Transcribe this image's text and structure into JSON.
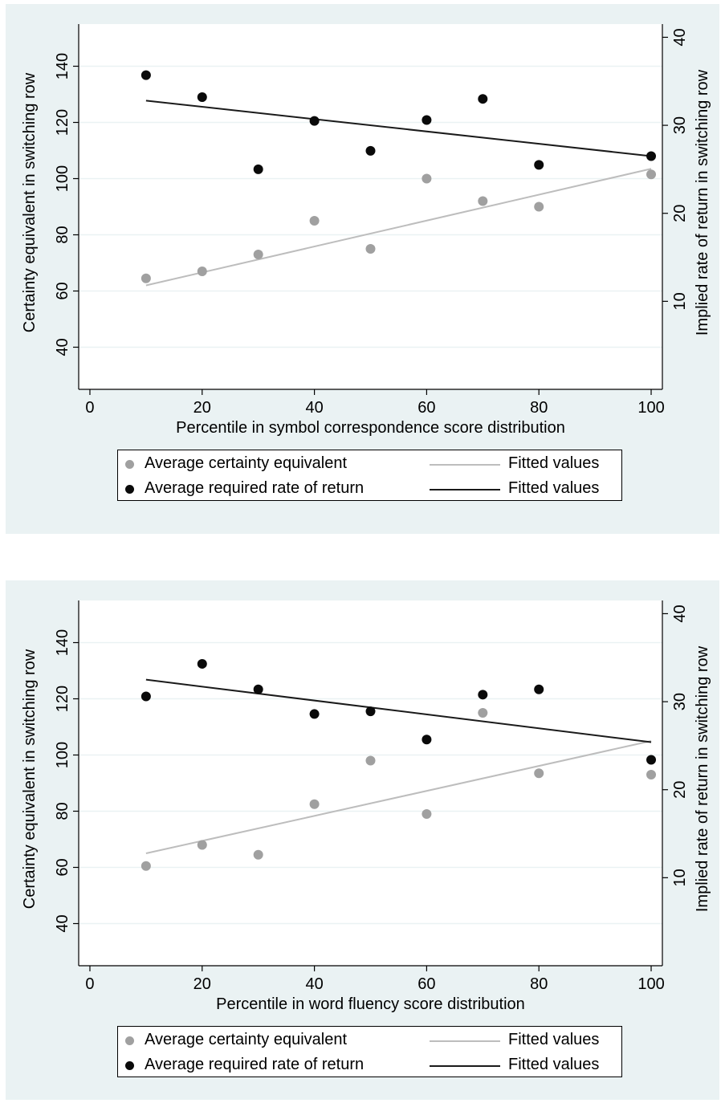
{
  "colors": {
    "background": "#eaf2f3",
    "plot_background": "#ffffff",
    "grid": "#eaf2f3",
    "certainty_series": "#a0a0a0",
    "return_series": "#0a0a0a",
    "certainty_fit": "#bdbdbd",
    "return_fit": "#1a1a1a"
  },
  "chart_data": [
    {
      "type": "scatter",
      "xlabel": "Percentile in symbol correspondence score distribution",
      "ylabel_left": "Certainty equivalent in switching row",
      "ylabel_right": "Implied rate of return in switching row",
      "xlim": [
        -2,
        102
      ],
      "xticks": [
        0,
        20,
        40,
        60,
        80,
        100
      ],
      "ylim_left": [
        25,
        155
      ],
      "yticks_left": [
        40,
        60,
        80,
        100,
        120,
        140
      ],
      "ylim_right": [
        0,
        41.5
      ],
      "yticks_right": [
        10,
        20,
        30,
        40
      ],
      "grid": true,
      "legend_position": "bottom",
      "x": [
        10,
        20,
        30,
        40,
        50,
        60,
        70,
        80,
        100
      ],
      "series": [
        {
          "name": "Average certainty equivalent",
          "axis": "left",
          "color": "#a0a0a0",
          "values": [
            64.5,
            67,
            73,
            85,
            75,
            100,
            92,
            90,
            101.5
          ]
        },
        {
          "name": "Average required rate of return",
          "axis": "right",
          "color": "#0a0a0a",
          "values": [
            35.7,
            33.2,
            25,
            30.5,
            27.1,
            30.6,
            33,
            25.5,
            26.5
          ]
        }
      ],
      "fits": [
        {
          "name": "Fitted values",
          "axis": "left",
          "color": "#bdbdbd",
          "x": [
            10,
            100
          ],
          "y": [
            62,
            103.5
          ]
        },
        {
          "name": "Fitted values",
          "axis": "right",
          "color": "#1a1a1a",
          "x": [
            10,
            100
          ],
          "y": [
            32.8,
            26.5
          ]
        }
      ]
    },
    {
      "type": "scatter",
      "xlabel": "Percentile in word fluency score distribution",
      "ylabel_left": "Certainty equivalent in switching row",
      "ylabel_right": "Implied rate of return in switching row",
      "xlim": [
        -2,
        102
      ],
      "xticks": [
        0,
        20,
        40,
        60,
        80,
        100
      ],
      "ylim_left": [
        25,
        155
      ],
      "yticks_left": [
        40,
        60,
        80,
        100,
        120,
        140
      ],
      "ylim_right": [
        0,
        41.5
      ],
      "yticks_right": [
        10,
        20,
        30,
        40
      ],
      "grid": true,
      "legend_position": "bottom",
      "x": [
        10,
        20,
        30,
        40,
        50,
        60,
        70,
        80,
        100
      ],
      "series": [
        {
          "name": "Average certainty equivalent",
          "axis": "left",
          "color": "#a0a0a0",
          "values": [
            60.5,
            68,
            64.5,
            82.5,
            98,
            79,
            115,
            93.5,
            93
          ]
        },
        {
          "name": "Average required rate of return",
          "axis": "right",
          "color": "#0a0a0a",
          "values": [
            30.6,
            34.3,
            31.4,
            28.6,
            28.9,
            25.7,
            30.8,
            31.4,
            23.4
          ]
        }
      ],
      "fits": [
        {
          "name": "Fitted values",
          "axis": "left",
          "color": "#bdbdbd",
          "x": [
            10,
            100
          ],
          "y": [
            65,
            105
          ]
        },
        {
          "name": "Fitted values",
          "axis": "right",
          "color": "#1a1a1a",
          "x": [
            10,
            100
          ],
          "y": [
            32.5,
            25.4
          ]
        }
      ]
    }
  ],
  "legend": {
    "ce_label": "Average certainty equivalent",
    "rr_label": "Average required rate of return",
    "fit_label_1": "Fitted values",
    "fit_label_2": "Fitted values"
  }
}
